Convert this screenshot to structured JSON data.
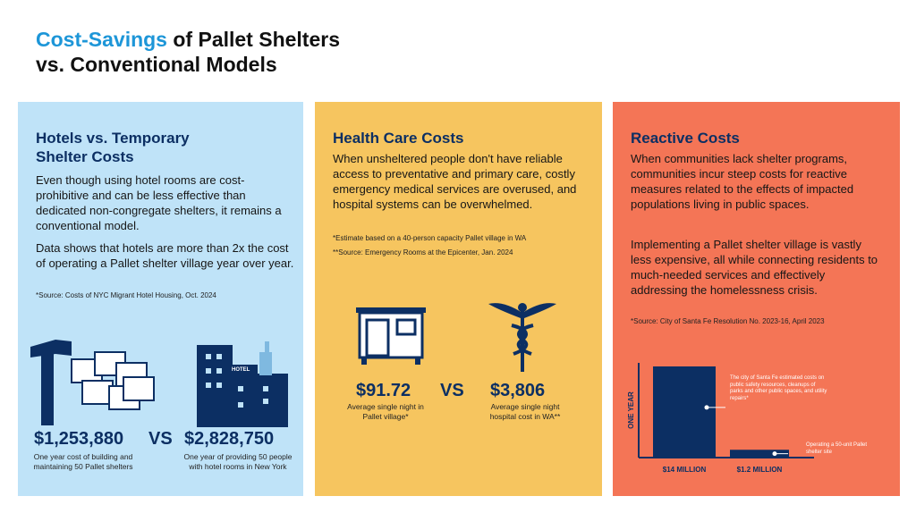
{
  "title": {
    "accent": "Cost-Savings",
    "line1_rest": " of Pallet Shelters",
    "line2": "vs. Conventional Models"
  },
  "hotels": {
    "heading": "Hotels vs. Temporary Shelter Costs",
    "body1": "Even though using hotel rooms are cost-prohibitive and can be less effective than dedicated non-congregate shelters, it remains a conventional model.",
    "body2": "Data shows that hotels are more than 2x the cost of operating a Pallet shelter village year over year.",
    "source": "*Source: Costs of NYC Migrant Hotel Housing, Oct. 2024",
    "left_value": "$1,253,880",
    "vs": "VS",
    "right_value": "$2,828,750",
    "left_caption": "One year cost of building and maintaining 50 Pallet shelters",
    "right_caption": "One year of providing 50 people with hotel rooms in New York",
    "hotel_sign": "HOTEL",
    "icons": [
      "hammer-icon",
      "pallet-shelters-icon",
      "city-skyline-icon",
      "statue-of-liberty-icon"
    ]
  },
  "health": {
    "heading": "Health Care Costs",
    "body": "When unsheltered people don't have reliable access to preventative and primary care, costly emergency medical services are overused, and hospital systems can be overwhelmed.",
    "note1": "*Estimate based on a 40-person capacity Pallet    village in WA",
    "note2": "**Source: Emergency Rooms at the Epicenter, Jan. 2024",
    "left_value": "$91.72",
    "vs": "VS",
    "right_value": "$3,806",
    "left_caption": "Average single night in Pallet village*",
    "right_caption": "Average single night hospital cost in WA**",
    "icons": [
      "shelter-icon",
      "caduceus-icon"
    ]
  },
  "reactive": {
    "heading": "Reactive Costs",
    "body1": "When communities lack shelter programs, communities incur steep costs for reactive measures related to the effects of impacted populations living in public spaces.",
    "body2": "Implementing a Pallet shelter village is vastly less expensive, all while connecting residents to much-needed services and effectively addressing the homelessness crisis.",
    "source": "*Source: City of Santa Fe Resolution No. 2023-16, April 2023"
  },
  "chart_data": {
    "type": "bar",
    "ylabel": "ONE YEAR",
    "categories": [
      "$14 MILLION",
      "$1.2 MILLION"
    ],
    "values": [
      14,
      1.2
    ],
    "annotations": [
      "The city of Santa Fe estimated costs on public safety resources, cleanups of parks and other public spaces, and utility repairs*",
      "Operating a 50-unit Pallet shelter site"
    ],
    "ylim": [
      0,
      14
    ],
    "bar_color": "#0c2f63"
  },
  "colors": {
    "accent": "#1d96d8",
    "navy": "#0c2f63",
    "panel_blue": "#bfe3f8",
    "panel_yellow": "#f6c55f",
    "panel_orange": "#f47556"
  }
}
